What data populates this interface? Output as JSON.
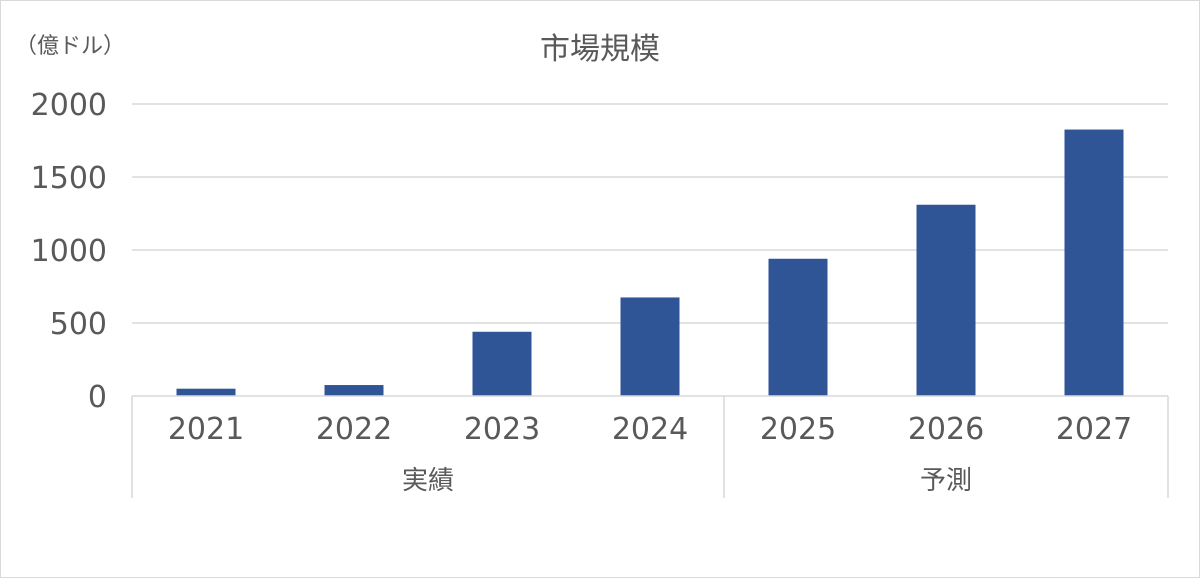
{
  "chart_data": {
    "type": "bar",
    "title": "市場規模",
    "ylabel": "（億ドル）",
    "xlabel": "",
    "categories": [
      "2021",
      "2022",
      "2023",
      "2024",
      "2025",
      "2026",
      "2027"
    ],
    "groups": [
      {
        "label": "実績",
        "categories": [
          "2021",
          "2022",
          "2023",
          "2024"
        ]
      },
      {
        "label": "予測",
        "categories": [
          "2025",
          "2026",
          "2027"
        ]
      }
    ],
    "values": [
      50,
      75,
      440,
      675,
      940,
      1310,
      1825
    ],
    "ylim": [
      0,
      2000
    ],
    "yticks": [
      "0",
      "500",
      "1000",
      "1500",
      "2000"
    ],
    "grid": true,
    "legend": "none",
    "bar_color": "#2f5597",
    "grid_color": "#d9d9d9",
    "text_color": "#595959"
  }
}
